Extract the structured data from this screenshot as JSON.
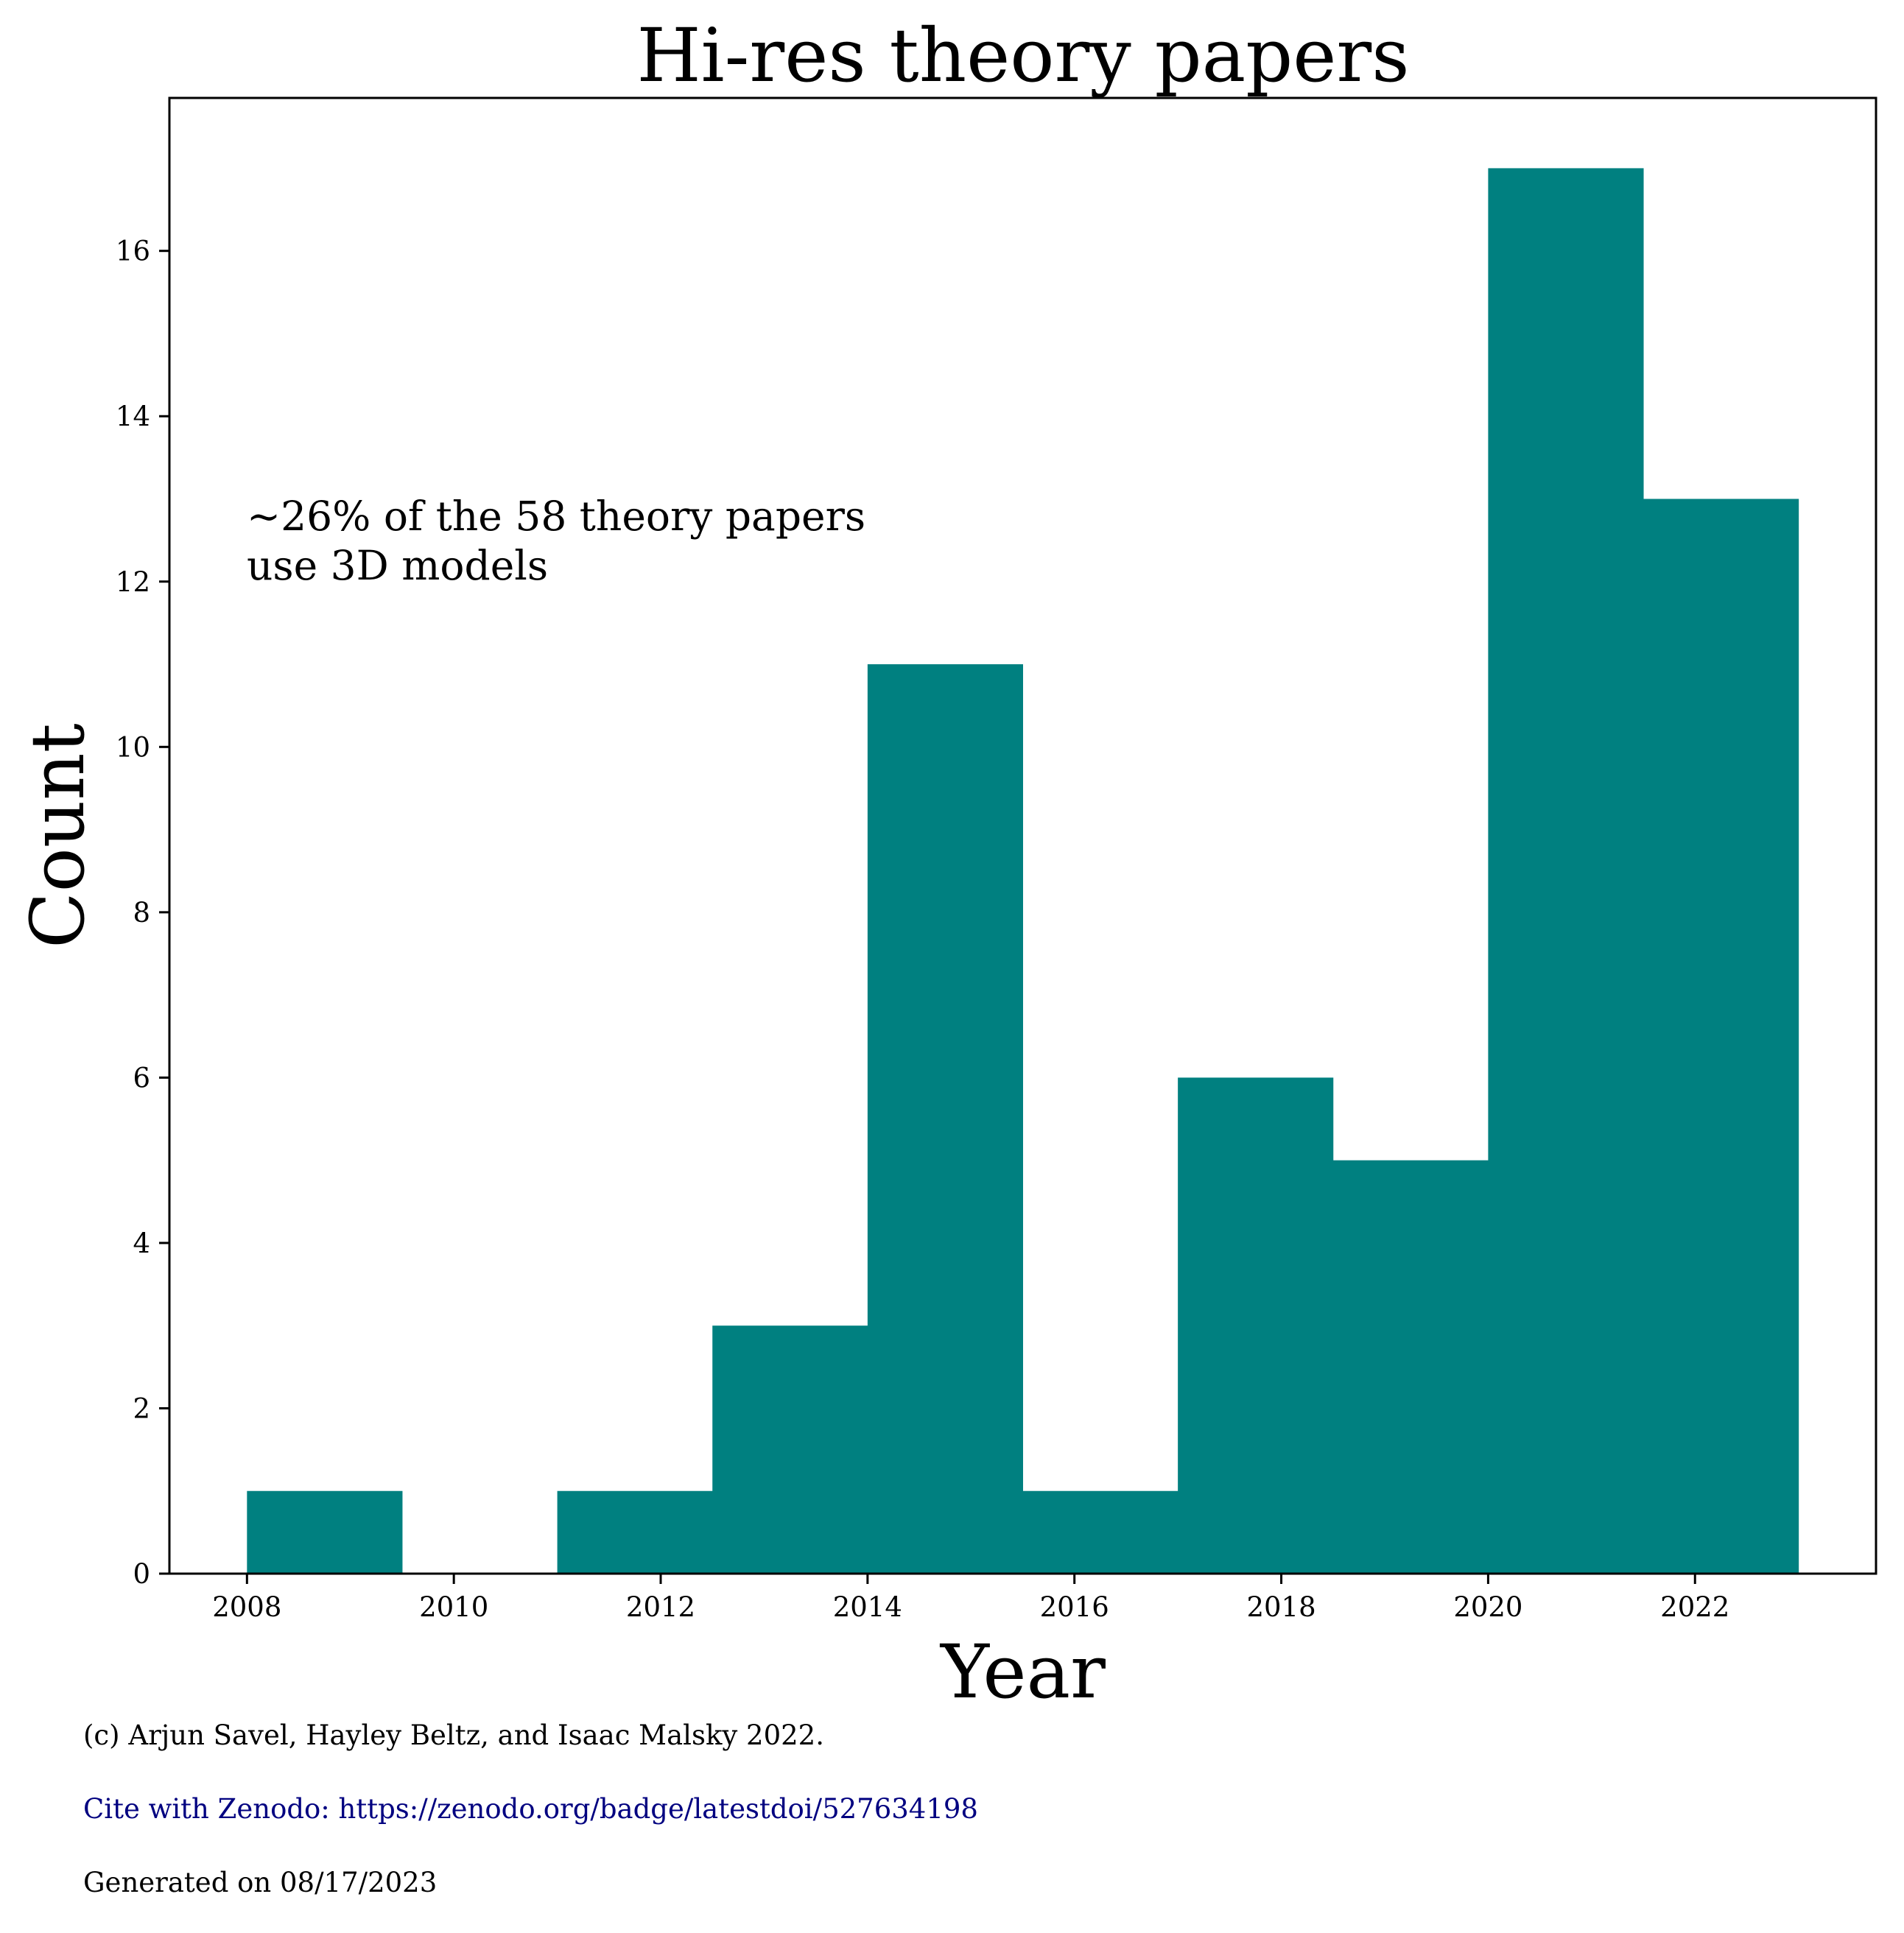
{
  "chart_data": {
    "type": "bar",
    "title": "Hi-res theory papers",
    "xlabel": "Year",
    "ylabel": "Count",
    "bin_edges": [
      2008,
      2009.5,
      2011,
      2012.5,
      2014,
      2015.5,
      2017,
      2018.5,
      2020,
      2021.5,
      2023
    ],
    "values": [
      1,
      0,
      1,
      3,
      11,
      1,
      6,
      5,
      17,
      13
    ],
    "xlim": [
      2007.25,
      2023.75
    ],
    "ylim": [
      0,
      17.85
    ],
    "xticks": [
      2008,
      2010,
      2012,
      2014,
      2016,
      2018,
      2020,
      2022
    ],
    "yticks": [
      0,
      2,
      4,
      6,
      8,
      10,
      12,
      14,
      16
    ],
    "bar_color": "#008080",
    "grid": false,
    "annotation": {
      "lines": [
        "~26% of the 58 theory papers",
        "use 3D models"
      ]
    }
  },
  "footer": {
    "copyright": "(c) Arjun Savel, Hayley Beltz, and Isaac Malsky 2022.",
    "cite": "Cite with Zenodo: https://zenodo.org/badge/latestdoi/527634198",
    "cite_color": "#000080",
    "generated": "Generated on 08/17/2023"
  }
}
